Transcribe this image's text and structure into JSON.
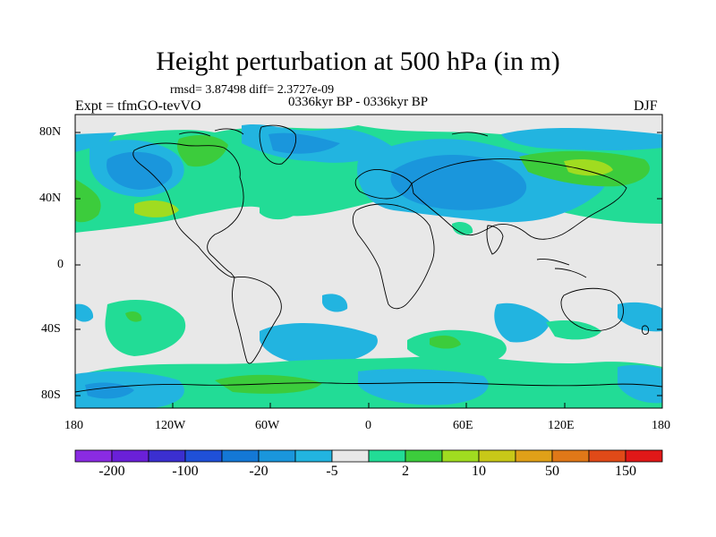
{
  "title": "Height perturbation at 500 hPa (in m)",
  "stats": "rmsd= 3.87498 diff= 2.3727e-09",
  "period": "0336kyr BP - 0336kyr BP",
  "experiment": "Expt = tfmGO-tevVO",
  "season": "DJF",
  "lat_ticks": [
    "80N",
    "40N",
    "0",
    "40S",
    "80S"
  ],
  "lon_ticks": [
    "180",
    "120W",
    "60W",
    "0",
    "60E",
    "120E",
    "180"
  ],
  "colorbar": {
    "labels": [
      "-200",
      "-100",
      "-20",
      "-5",
      "2",
      "10",
      "50",
      "150"
    ],
    "colors": [
      "#8a2be2",
      "#6a20d8",
      "#3b2fd0",
      "#1f50d8",
      "#1478d6",
      "#1a96dc",
      "#22b4e0",
      "#e8e8e8",
      "#22dc96",
      "#3ccc3c",
      "#a0dc20",
      "#c8c818",
      "#e0a018",
      "#e07818",
      "#e04a18",
      "#e01818"
    ]
  },
  "fields": {
    "background": "#e8e8e8",
    "light_blue": "#22b4e0",
    "mid_blue": "#1a96dc",
    "deep_blue": "#1478d6",
    "teal": "#22dc96",
    "green": "#3ccc3c",
    "yellow_green": "#a0dc20"
  }
}
